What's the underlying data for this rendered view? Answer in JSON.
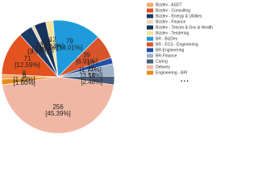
{
  "chart_data": {
    "type": "pie",
    "categories": [
      "Bizdev - ASDT",
      "Bizdev - Consulting",
      "Bizdev - Energy & Utilities",
      "Bizdev - Finance",
      "Bizdev - Telcom & Gov & Health",
      "Bizdev - Tendering",
      "BR - BizDev",
      "BR - ECS - Engineering",
      "BR-Engineering",
      "BR-Finance",
      "Caring",
      "Delivery",
      "Engineering - BPI"
    ],
    "values": [
      8,
      71,
      22,
      5,
      19,
      12,
      79,
      39,
      10,
      20,
      14,
      256,
      9
    ],
    "percent_labels": [
      "[1.42%]",
      "[12.59%]",
      "[3.90%]",
      "[0.89%]",
      "[3.37%]",
      "[2.13%]",
      "[14.01%]",
      "[6.91%]",
      "[1.77%]",
      "[3.55%]",
      "[2.48%]",
      "[45.39%]",
      "[1.60%]"
    ],
    "colors": [
      "#f5a96b",
      "#e2531f",
      "#1c3a66",
      "#e8d7b0",
      "#16335c",
      "#f6e39a",
      "#1f9bdc",
      "#d8542b",
      "#1f4fa8",
      "#9fb3c8",
      "#4a5d78",
      "#f0b8a4",
      "#e88a1a"
    ]
  }
}
